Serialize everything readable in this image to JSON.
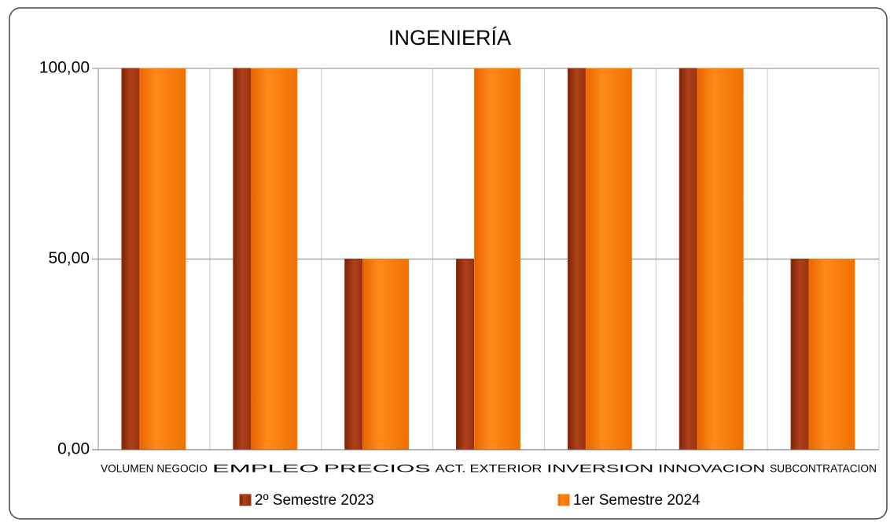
{
  "chart_data": {
    "type": "bar",
    "title": "INGENIERÍA",
    "categories": [
      "VOLUMEN NEGOCIO",
      "EMPLEO",
      "PRECIOS",
      "ACT. EXTERIOR",
      "INVERSION",
      "INNOVACION",
      "SUBCONTRATACION"
    ],
    "series": [
      {
        "name": "2º Semestre 2023",
        "color": "#9c3410",
        "values": [
          100,
          100,
          50,
          50,
          100,
          100,
          50
        ]
      },
      {
        "name": "1er Semestre 2024",
        "color": "#ff7a00",
        "values": [
          100,
          100,
          50,
          100,
          100,
          100,
          50
        ]
      }
    ],
    "ylim": [
      0,
      100
    ],
    "yticks": [
      {
        "value": 0,
        "label": "0,00"
      },
      {
        "value": 50,
        "label": "50,00"
      },
      {
        "value": 100,
        "label": "100,00"
      }
    ],
    "grid": true,
    "legend": "bottom"
  }
}
